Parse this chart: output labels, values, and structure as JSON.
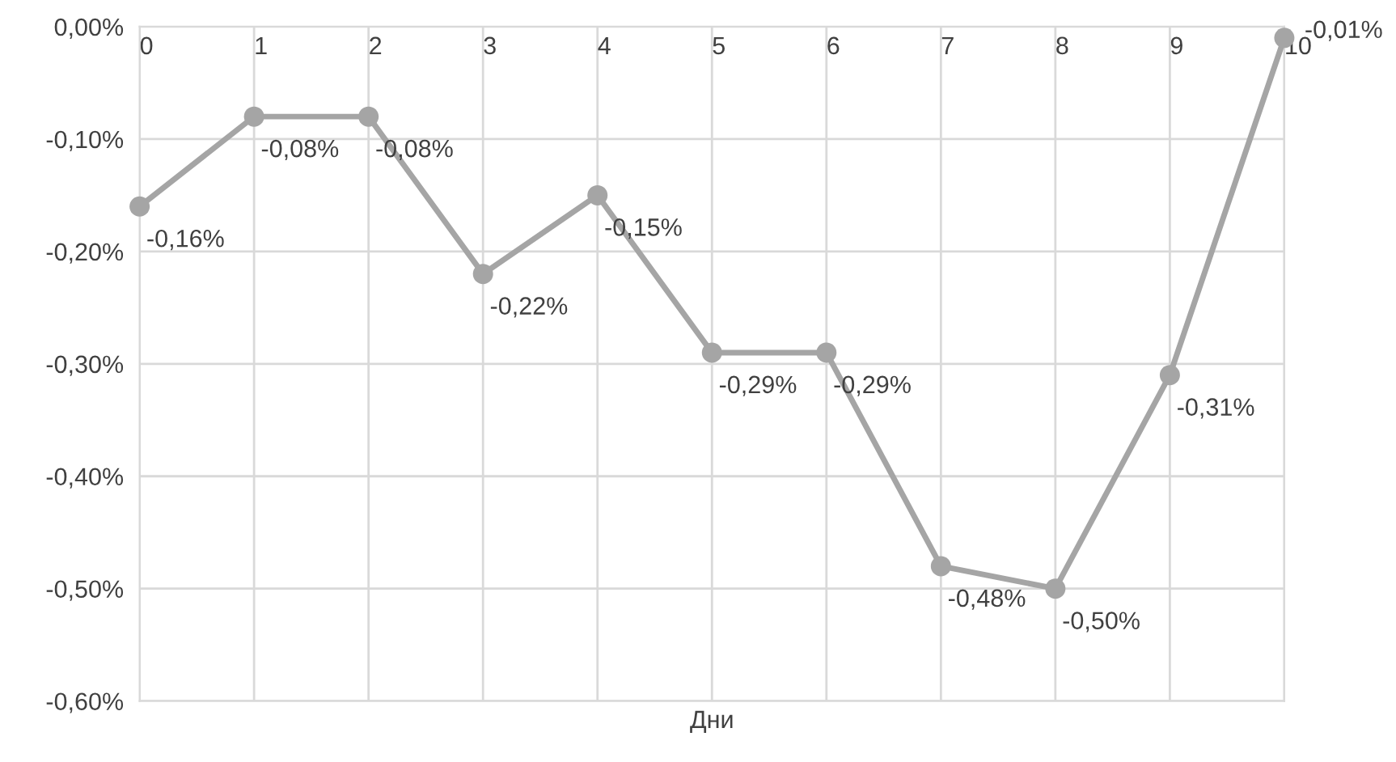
{
  "chart_data": {
    "type": "line",
    "xlabel": "Дни",
    "categories": [
      "0",
      "1",
      "2",
      "3",
      "4",
      "5",
      "6",
      "7",
      "8",
      "9",
      "10"
    ],
    "series": [
      {
        "color": "#a5a5a5",
        "values": [
          -0.16,
          -0.08,
          -0.08,
          -0.22,
          -0.15,
          -0.29,
          -0.29,
          -0.48,
          -0.5,
          -0.31,
          -0.01
        ],
        "value_labels": [
          "-0,16%",
          "-0,08%",
          "-0,08%",
          "-0,22%",
          "-0,15%",
          "-0,29%",
          "-0,29%",
          "-0,48%",
          "-0,50%",
          "-0,31%",
          "-0,01%"
        ]
      }
    ],
    "ylim": [
      -0.6,
      0.0
    ],
    "yticks": [
      {
        "value": 0.0,
        "label": "0,00%"
      },
      {
        "value": -0.1,
        "label": "-0,10%"
      },
      {
        "value": -0.2,
        "label": "-0,20%"
      },
      {
        "value": -0.3,
        "label": "-0,30%"
      },
      {
        "value": -0.4,
        "label": "-0,40%"
      },
      {
        "value": -0.5,
        "label": "-0,50%"
      },
      {
        "value": -0.6,
        "label": "-0,60%"
      }
    ],
    "grid": true,
    "marker": "circle",
    "line_style": "solid",
    "legend": false
  }
}
